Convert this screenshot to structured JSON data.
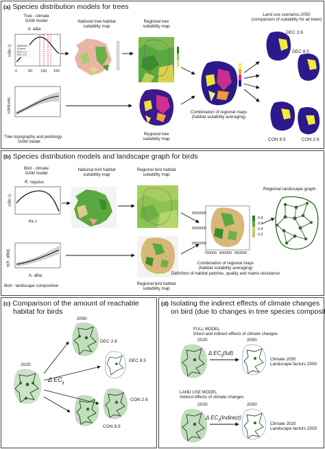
{
  "panel_a": {
    "letter": "(a)",
    "title": "Species distribution models for trees",
    "tree_climate_gam": [
      "Tree - climate",
      "GAM model"
    ],
    "species": "A. alba",
    "ylabel_bio": "s(Bio 1)",
    "ylabel_alt": "s(Altitude)",
    "legend": [
      "Optimum",
      "Current",
      "RCP 2.6",
      "RCP 8.5"
    ],
    "x_ticks": [
      "0",
      "50",
      "100",
      "150"
    ],
    "national_map": [
      "National tree habitat",
      "suitability map"
    ],
    "regional_map_top": [
      "Regional tree",
      "suitability map"
    ],
    "regional_map_bottom": [
      "Regional tree",
      "suitability map"
    ],
    "land_use": [
      "Land use scenarios 2050",
      "(comparison of suitability for all trees)"
    ],
    "combination": [
      "Combination of regional maps",
      "(habitat suitability averaging)"
    ],
    "topo_label": [
      "Tree topography and pedology",
      "GAM model"
    ],
    "scenarios": [
      "DEC 2.6",
      "DEC 8.5",
      "CON 2.6",
      "CON 8.5"
    ]
  },
  "panel_b": {
    "letter": "(b)",
    "title": "Species distribution models and landscape graph for birds",
    "bird_climate_gam": [
      "Bird - climate",
      "GAM model"
    ],
    "species": "R. regulus",
    "ylabel_bio": "s(Bio 1)",
    "xlabel_bio": "Bio 1",
    "ylabel_alba": "s(A. alba)",
    "xlabel_alba": "A. alba",
    "national_map": [
      "National bird habitat",
      "suitability map"
    ],
    "regional_map_top": [
      "Regional bird habitat",
      "suitability map"
    ],
    "regional_map_bottom": [
      "Regional bird habitat",
      "suitability map"
    ],
    "landscape_graph": "Regional landscape graph",
    "combination": [
      "Combination of regional maps",
      "(habitat suitability averaging)",
      "Definition of habitat patches, quality and matrix resistance"
    ],
    "landscape_comp": "Bird - landscape composition",
    "legend_vals": [
      "0.8",
      "0.6",
      "0.4",
      "0.2"
    ],
    "map_x_ticks": [
      "750000",
      "800000",
      "850000"
    ],
    "map_y_ticks": [
      "6650000",
      "6600000",
      "6550000"
    ]
  },
  "panel_c": {
    "letter": "(c)",
    "title": [
      "Comparison of the amount of reachable",
      "habitat for birds"
    ],
    "year_2050": "2050",
    "year_2020": "2020",
    "delta": "Δ EC",
    "delta_sub": "ij",
    "scenarios": [
      "DEC 2.6",
      "DEC 8.5",
      "CON 2.6",
      "CON 8.5"
    ]
  },
  "panel_d": {
    "letter": "(d)",
    "title": [
      "Isolating the indirect effects of climate changes",
      "on bird (due to changes in tree species composition)"
    ],
    "full_model": [
      "FULL MODEL",
      "Direct and indirect effects of climate changes"
    ],
    "land_use_model": [
      "LAND USE MODEL",
      "Indirect effects of climate changes"
    ],
    "year_2020": "2020",
    "year_2050": "2050",
    "delta_full": "Δ EC",
    "delta_full_sub": "ij",
    "delta_full_arg": "(full)",
    "delta_ind": "Δ EC",
    "delta_ind_sub": "ij",
    "delta_ind_arg": "(indirect)",
    "full_result": [
      "Climate 2050",
      "Landscape factors 2050"
    ],
    "ind_result": [
      "Climate 2020",
      "Landscape factors 2050"
    ]
  },
  "colors": {
    "forest": "#2e6b1f",
    "suit_green": "#5fa83a",
    "suit_tan": "#d9b27a",
    "purple": "#3a1a8c",
    "yellow": "#f2e02a",
    "pink": "#d63a8a"
  }
}
